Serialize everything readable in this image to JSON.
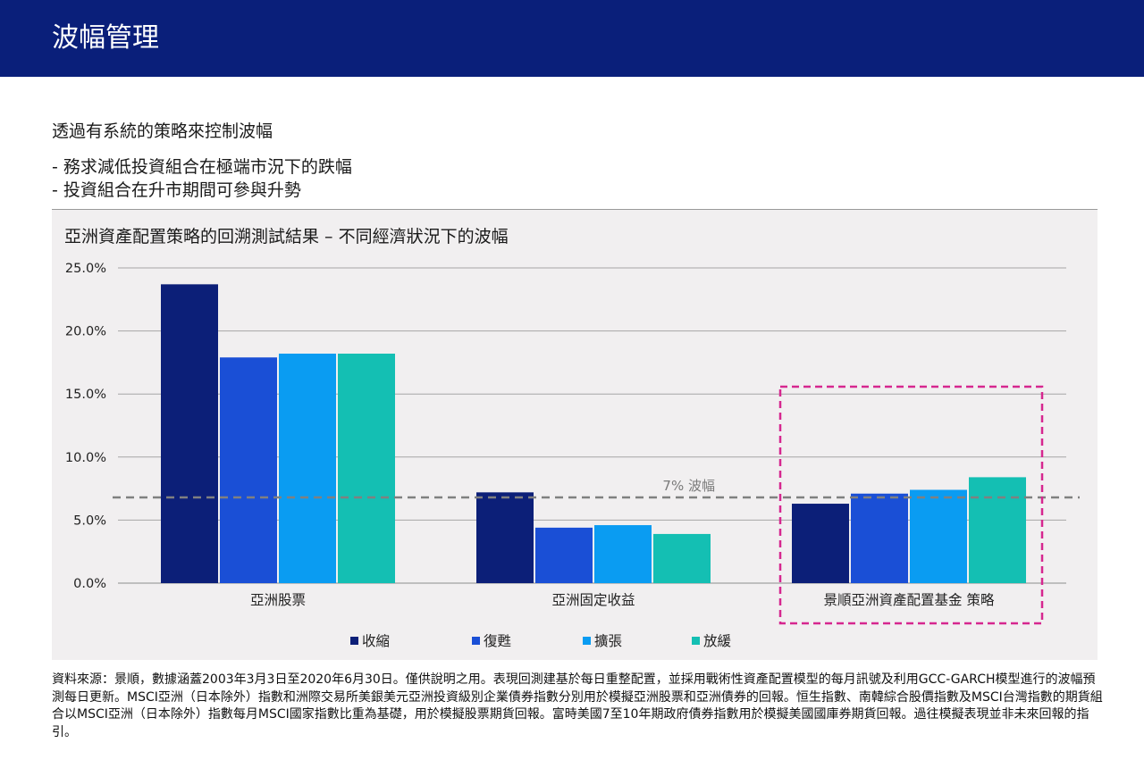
{
  "header": {
    "title": "波幅管理"
  },
  "intro": {
    "heading": "透過有系統的策略來控制波幅"
  },
  "bullets": [
    "-  務求減低投資組合在極端市況下的跌幅",
    "-  投資組合在升市期間可參與升勢"
  ],
  "chart_data": {
    "type": "bar",
    "title": "亞洲資產配置策略的回溯測試結果 – 不同經濟狀況下的波幅",
    "categories": [
      "亞洲股票",
      "亞洲固定收益",
      "景順亞洲資產配置基金 策略"
    ],
    "series": [
      {
        "name": "收縮",
        "color": "#0c1f78",
        "values": [
          23.7,
          7.2,
          6.3
        ]
      },
      {
        "name": "復甦",
        "color": "#1a4fd6",
        "values": [
          17.9,
          4.4,
          7.1
        ]
      },
      {
        "name": "擴張",
        "color": "#0a9cf2",
        "values": [
          18.2,
          4.6,
          7.4
        ]
      },
      {
        "name": "放緩",
        "color": "#14bfb3",
        "values": [
          18.2,
          3.9,
          8.4
        ]
      }
    ],
    "ylim": [
      0,
      25
    ],
    "yticks": [
      "0.0%",
      "5.0%",
      "10.0%",
      "15.0%",
      "20.0%",
      "25.0%"
    ],
    "ytick_values": [
      0,
      5,
      10,
      15,
      20,
      25
    ],
    "reference_line": {
      "value": 6.8,
      "label": "7% 波幅",
      "color": "#808080"
    },
    "highlight": {
      "category_index": 2,
      "color": "#d6278f"
    },
    "grid": true,
    "legend_position": "bottom"
  },
  "source_note": "資料來源：景順，數據涵蓋2003年3月3日至2020年6月30日。僅供說明之用。表現回測建基於每日重整配置，並採用戰術性資產配置模型的每月訊號及利用GCC-GARCH模型進行的波幅預測每日更新。MSCI亞洲（日本除外）指數和洲際交易所美銀美元亞洲投資級別企業債券指數分別用於模擬亞洲股票和亞洲債券的回報。恒生指數、南韓綜合股價指數及MSCI台灣指數的期貨組合以MSCI亞洲（日本除外）指數每月MSCI國家指數比重為基礎，用於模擬股票期貨回報。富時美國7至10年期政府債券指數用於模擬美國國庫券期貨回報。過往模擬表現並非未來回報的指引。"
}
